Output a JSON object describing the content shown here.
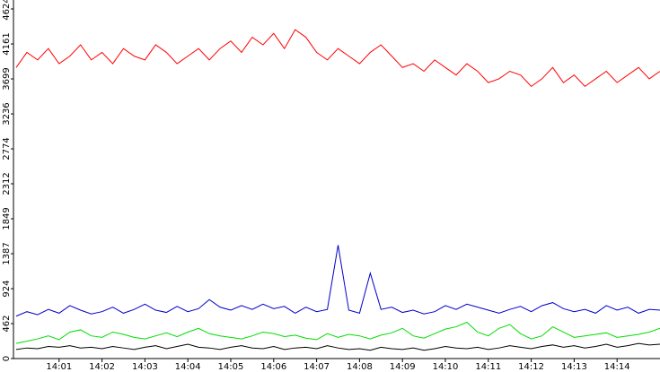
{
  "chart_data": {
    "type": "line",
    "x": [
      840,
      840.25,
      840.5,
      840.75,
      841,
      841.25,
      841.5,
      841.75,
      842,
      842.25,
      842.5,
      842.75,
      843,
      843.25,
      843.5,
      843.75,
      844,
      844.25,
      844.5,
      844.75,
      845,
      845.25,
      845.5,
      845.75,
      846,
      846.25,
      846.5,
      846.75,
      847,
      847.25,
      847.5,
      847.75,
      848,
      848.25,
      848.5,
      848.75,
      849,
      849.25,
      849.5,
      849.75,
      850,
      850.25,
      850.5,
      850.75,
      851,
      851.25,
      851.5,
      851.75,
      852,
      852.25,
      852.5,
      852.75,
      853,
      853.25,
      853.5,
      853.75,
      854,
      854.25,
      854.5,
      854.75,
      855
    ],
    "xlim": [
      840,
      855
    ],
    "xticks": [
      {
        "value": 841,
        "label": "14:01"
      },
      {
        "value": 842,
        "label": "14:02"
      },
      {
        "value": 843,
        "label": "14:03"
      },
      {
        "value": 844,
        "label": "14:04"
      },
      {
        "value": 845,
        "label": "14:05"
      },
      {
        "value": 846,
        "label": "14:06"
      },
      {
        "value": 847,
        "label": "14:07"
      },
      {
        "value": 848,
        "label": "14:08"
      },
      {
        "value": 849,
        "label": "14:09"
      },
      {
        "value": 850,
        "label": "14:10"
      },
      {
        "value": 851,
        "label": "14:11"
      },
      {
        "value": 852,
        "label": "14:12"
      },
      {
        "value": 853,
        "label": "14:13"
      },
      {
        "value": 854,
        "label": "14:14"
      }
    ],
    "ylim": [
      0,
      4624
    ],
    "yticks": [
      0,
      462,
      924,
      1387,
      1849,
      2312,
      2774,
      3236,
      3699,
      4161,
      4624
    ],
    "series": [
      {
        "color": "#ff0000",
        "values": [
          3850,
          4050,
          3950,
          4100,
          3900,
          4000,
          4150,
          3950,
          4050,
          3900,
          4100,
          4000,
          3950,
          4150,
          4050,
          3900,
          4000,
          4100,
          3950,
          4100,
          4200,
          4050,
          4250,
          4150,
          4300,
          4100,
          4350,
          4250,
          4050,
          3950,
          4100,
          4000,
          3900,
          4050,
          4150,
          4000,
          3850,
          3900,
          3800,
          3950,
          3850,
          3750,
          3900,
          3800,
          3650,
          3700,
          3800,
          3750,
          3600,
          3700,
          3850,
          3650,
          3750,
          3600,
          3700,
          3800,
          3650,
          3750,
          3850,
          3700,
          3800
        ]
      },
      {
        "color": "#0000cc",
        "values": [
          560,
          620,
          580,
          650,
          600,
          700,
          640,
          590,
          620,
          680,
          600,
          650,
          720,
          640,
          610,
          690,
          620,
          660,
          780,
          680,
          640,
          700,
          650,
          720,
          660,
          690,
          600,
          680,
          620,
          650,
          1500,
          640,
          600,
          1130,
          650,
          680,
          610,
          640,
          590,
          620,
          700,
          650,
          720,
          680,
          640,
          600,
          650,
          690,
          620,
          700,
          740,
          660,
          620,
          650,
          600,
          700,
          640,
          680,
          600,
          650,
          640
        ]
      },
      {
        "color": "#00dd00",
        "values": [
          200,
          230,
          260,
          300,
          250,
          350,
          380,
          300,
          280,
          350,
          320,
          280,
          260,
          300,
          340,
          290,
          350,
          400,
          330,
          300,
          280,
          260,
          300,
          350,
          330,
          290,
          310,
          270,
          250,
          330,
          280,
          320,
          300,
          260,
          310,
          340,
          400,
          300,
          270,
          330,
          390,
          420,
          480,
          350,
          300,
          400,
          450,
          330,
          260,
          300,
          420,
          350,
          280,
          300,
          320,
          340,
          280,
          300,
          320,
          350,
          400
        ]
      },
      {
        "color": "#000000",
        "values": [
          120,
          140,
          130,
          160,
          150,
          170,
          140,
          150,
          130,
          160,
          140,
          120,
          150,
          170,
          130,
          160,
          190,
          150,
          140,
          120,
          150,
          170,
          140,
          130,
          160,
          120,
          140,
          150,
          130,
          170,
          140,
          120,
          130,
          110,
          150,
          130,
          120,
          140,
          110,
          130,
          160,
          140,
          130,
          150,
          120,
          140,
          170,
          150,
          130,
          160,
          180,
          150,
          170,
          140,
          160,
          190,
          150,
          170,
          200,
          180,
          190
        ]
      }
    ]
  }
}
